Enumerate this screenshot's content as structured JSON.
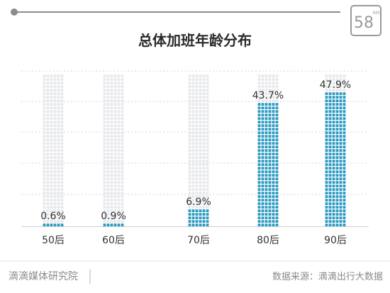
{
  "logo": {
    "text": "58",
    "superscript": "KM"
  },
  "chart_data": {
    "type": "bar",
    "title": "总体加班年龄分布",
    "categories": [
      "50后",
      "60后",
      "70后",
      "80后",
      "90后"
    ],
    "values": [
      0.6,
      0.9,
      6.9,
      43.7,
      47.9
    ],
    "value_labels": [
      "0.6%",
      "0.9%",
      "6.9%",
      "43.7%",
      "47.9%"
    ],
    "ylim": [
      0,
      55
    ],
    "grid": true,
    "legend": "none",
    "bar_style": "tiled-squares",
    "colors": {
      "filled": "#2c9ac0",
      "empty": "#e7e8ec",
      "grid": "#d6d6d6",
      "top_line": "#8c8c8c"
    }
  },
  "footer": {
    "left": "滴滴媒体研究院",
    "right": "数据来源：滴滴出行大数据"
  }
}
